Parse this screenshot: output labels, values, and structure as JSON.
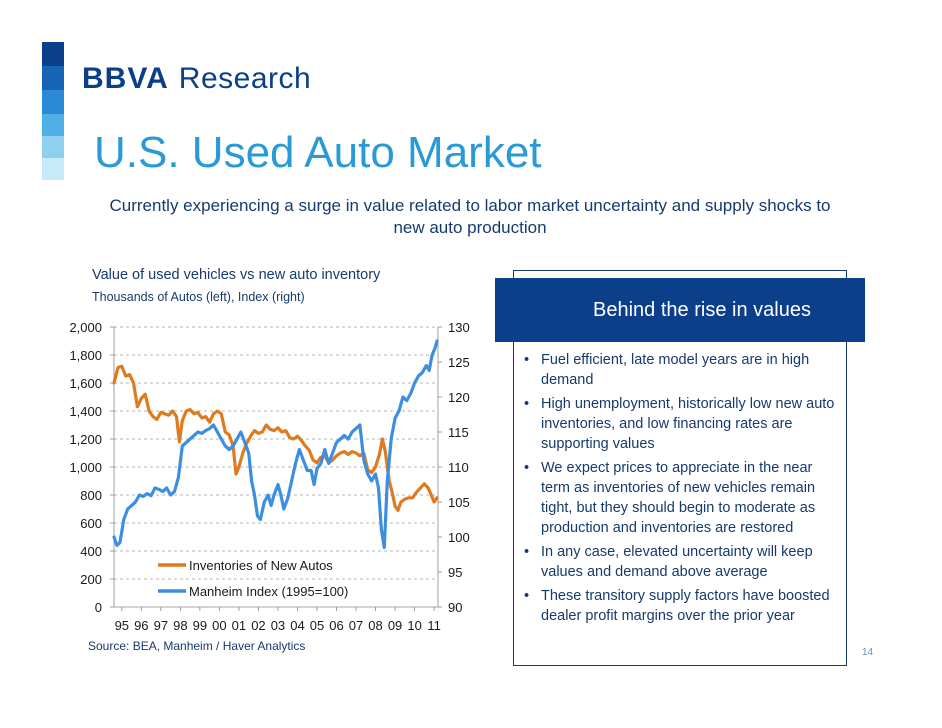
{
  "brand": {
    "name": "BBVA",
    "unit": "Research",
    "band_colors": [
      "#0b3f8a",
      "#1565b7",
      "#2a8ad8",
      "#4fb0e6",
      "#8fd0f0",
      "#c7e9f8"
    ]
  },
  "slide": {
    "title": "U.S. Used Auto Market",
    "subtitle": "Currently experiencing a surge in value related to labor market uncertainty and supply shocks to new auto production",
    "page_number": "14"
  },
  "chart_header": {
    "title": "Value of used vehicles vs new auto inventory",
    "subtitle": "Thousands of Autos (left), Index (right)",
    "source": "Source: BEA, Manheim / Haver Analytics"
  },
  "chart_data": {
    "type": "line",
    "x_tick_labels": [
      "95",
      "96",
      "97",
      "98",
      "99",
      "00",
      "01",
      "02",
      "03",
      "04",
      "05",
      "06",
      "07",
      "08",
      "09",
      "10",
      "11"
    ],
    "x_range": [
      1995.0,
      2011.6
    ],
    "left_axis": {
      "range": [
        0,
        2000
      ],
      "ticks": [
        0,
        200,
        400,
        600,
        800,
        1000,
        1200,
        1400,
        1600,
        1800,
        2000
      ],
      "tick_labels": [
        "0",
        "200",
        "400",
        "600",
        "800",
        "1,000",
        "1,200",
        "1,400",
        "1,600",
        "1,800",
        "2,000"
      ]
    },
    "right_axis": {
      "range": [
        90,
        130
      ],
      "ticks": [
        90,
        95,
        100,
        105,
        110,
        115,
        120,
        125,
        130
      ],
      "tick_labels": [
        "90",
        "95",
        "100",
        "105",
        "110",
        "115",
        "120",
        "125",
        "130"
      ]
    },
    "grid": "horizontal dashed",
    "legend_position": "lower-left",
    "series": [
      {
        "name": "Inventories of New Autos",
        "axis": "left",
        "color": "#e07a1f",
        "points": [
          [
            1995.0,
            1600
          ],
          [
            1995.2,
            1710
          ],
          [
            1995.4,
            1720
          ],
          [
            1995.6,
            1650
          ],
          [
            1995.8,
            1660
          ],
          [
            1996.0,
            1600
          ],
          [
            1996.2,
            1430
          ],
          [
            1996.4,
            1490
          ],
          [
            1996.6,
            1520
          ],
          [
            1996.8,
            1400
          ],
          [
            1997.0,
            1360
          ],
          [
            1997.2,
            1340
          ],
          [
            1997.4,
            1390
          ],
          [
            1997.6,
            1380
          ],
          [
            1997.8,
            1370
          ],
          [
            1998.0,
            1400
          ],
          [
            1998.2,
            1360
          ],
          [
            1998.35,
            1180
          ],
          [
            1998.5,
            1330
          ],
          [
            1998.7,
            1400
          ],
          [
            1998.9,
            1410
          ],
          [
            1999.1,
            1380
          ],
          [
            1999.3,
            1390
          ],
          [
            1999.5,
            1350
          ],
          [
            1999.7,
            1360
          ],
          [
            1999.9,
            1320
          ],
          [
            2000.1,
            1380
          ],
          [
            2000.3,
            1400
          ],
          [
            2000.5,
            1380
          ],
          [
            2000.7,
            1250
          ],
          [
            2000.9,
            1230
          ],
          [
            2001.1,
            1150
          ],
          [
            2001.25,
            950
          ],
          [
            2001.4,
            1000
          ],
          [
            2001.6,
            1100
          ],
          [
            2001.8,
            1170
          ],
          [
            2002.0,
            1220
          ],
          [
            2002.2,
            1260
          ],
          [
            2002.4,
            1240
          ],
          [
            2002.6,
            1250
          ],
          [
            2002.8,
            1300
          ],
          [
            2003.0,
            1270
          ],
          [
            2003.2,
            1260
          ],
          [
            2003.4,
            1280
          ],
          [
            2003.6,
            1250
          ],
          [
            2003.8,
            1260
          ],
          [
            2004.0,
            1210
          ],
          [
            2004.2,
            1200
          ],
          [
            2004.4,
            1220
          ],
          [
            2004.6,
            1190
          ],
          [
            2004.8,
            1150
          ],
          [
            2005.0,
            1120
          ],
          [
            2005.2,
            1050
          ],
          [
            2005.4,
            1030
          ],
          [
            2005.6,
            1070
          ],
          [
            2005.8,
            1080
          ],
          [
            2006.0,
            1030
          ],
          [
            2006.2,
            1050
          ],
          [
            2006.4,
            1080
          ],
          [
            2006.6,
            1100
          ],
          [
            2006.8,
            1110
          ],
          [
            2007.0,
            1090
          ],
          [
            2007.2,
            1110
          ],
          [
            2007.4,
            1100
          ],
          [
            2007.6,
            1080
          ],
          [
            2007.8,
            1100
          ],
          [
            2008.0,
            980
          ],
          [
            2008.2,
            960
          ],
          [
            2008.4,
            1000
          ],
          [
            2008.6,
            1090
          ],
          [
            2008.75,
            1200
          ],
          [
            2008.9,
            1110
          ],
          [
            2009.1,
            900
          ],
          [
            2009.25,
            820
          ],
          [
            2009.4,
            720
          ],
          [
            2009.55,
            690
          ],
          [
            2009.7,
            750
          ],
          [
            2009.9,
            770
          ],
          [
            2010.1,
            780
          ],
          [
            2010.3,
            780
          ],
          [
            2010.5,
            820
          ],
          [
            2010.7,
            850
          ],
          [
            2010.9,
            880
          ],
          [
            2011.1,
            850
          ],
          [
            2011.25,
            800
          ],
          [
            2011.4,
            750
          ],
          [
            2011.55,
            780
          ]
        ]
      },
      {
        "name": "Manheim Index (1995=100)",
        "axis": "right",
        "color": "#3e8ee0",
        "points": [
          [
            1995.0,
            100
          ],
          [
            1995.15,
            98.8
          ],
          [
            1995.3,
            99.2
          ],
          [
            1995.5,
            102.5
          ],
          [
            1995.7,
            104
          ],
          [
            1995.9,
            104.5
          ],
          [
            1996.1,
            105
          ],
          [
            1996.3,
            106
          ],
          [
            1996.5,
            105.8
          ],
          [
            1996.7,
            106.2
          ],
          [
            1996.9,
            105.9
          ],
          [
            1997.1,
            107
          ],
          [
            1997.3,
            106.8
          ],
          [
            1997.5,
            106.5
          ],
          [
            1997.7,
            107
          ],
          [
            1997.9,
            106
          ],
          [
            1998.1,
            106.5
          ],
          [
            1998.3,
            108.5
          ],
          [
            1998.5,
            113
          ],
          [
            1998.7,
            113.5
          ],
          [
            1998.9,
            114
          ],
          [
            1999.1,
            114.5
          ],
          [
            1999.3,
            115
          ],
          [
            1999.5,
            114.8
          ],
          [
            1999.7,
            115.2
          ],
          [
            1999.9,
            115.5
          ],
          [
            2000.1,
            116
          ],
          [
            2000.3,
            115
          ],
          [
            2000.5,
            114
          ],
          [
            2000.7,
            113
          ],
          [
            2000.9,
            112.5
          ],
          [
            2001.1,
            113
          ],
          [
            2001.3,
            114
          ],
          [
            2001.5,
            115
          ],
          [
            2001.7,
            113.5
          ],
          [
            2001.9,
            112
          ],
          [
            2002.05,
            108
          ],
          [
            2002.2,
            106
          ],
          [
            2002.35,
            103
          ],
          [
            2002.5,
            102.5
          ],
          [
            2002.7,
            105
          ],
          [
            2002.9,
            106
          ],
          [
            2003.05,
            104.5
          ],
          [
            2003.2,
            106
          ],
          [
            2003.4,
            107.5
          ],
          [
            2003.55,
            106
          ],
          [
            2003.7,
            104
          ],
          [
            2003.9,
            105.5
          ],
          [
            2004.1,
            108
          ],
          [
            2004.3,
            110.5
          ],
          [
            2004.5,
            112.5
          ],
          [
            2004.7,
            111
          ],
          [
            2004.9,
            109.5
          ],
          [
            2005.1,
            109.5
          ],
          [
            2005.25,
            107.5
          ],
          [
            2005.4,
            109.8
          ],
          [
            2005.6,
            110.5
          ],
          [
            2005.8,
            112.5
          ],
          [
            2006.0,
            110.5
          ],
          [
            2006.2,
            112
          ],
          [
            2006.4,
            113.5
          ],
          [
            2006.6,
            114
          ],
          [
            2006.8,
            114.5
          ],
          [
            2007.0,
            114
          ],
          [
            2007.2,
            115
          ],
          [
            2007.4,
            115.5
          ],
          [
            2007.6,
            116
          ],
          [
            2007.8,
            111
          ],
          [
            2008.0,
            109
          ],
          [
            2008.2,
            108
          ],
          [
            2008.4,
            109
          ],
          [
            2008.55,
            107
          ],
          [
            2008.7,
            101
          ],
          [
            2008.85,
            98.5
          ],
          [
            2009.0,
            108
          ],
          [
            2009.2,
            114
          ],
          [
            2009.4,
            117
          ],
          [
            2009.6,
            118
          ],
          [
            2009.8,
            120
          ],
          [
            2010.0,
            119.5
          ],
          [
            2010.2,
            120.5
          ],
          [
            2010.4,
            122
          ],
          [
            2010.6,
            123
          ],
          [
            2010.8,
            123.5
          ],
          [
            2011.0,
            124.5
          ],
          [
            2011.15,
            123.8
          ],
          [
            2011.3,
            126
          ],
          [
            2011.45,
            127
          ],
          [
            2011.55,
            128
          ]
        ]
      }
    ]
  },
  "panel": {
    "heading": "Behind the rise in values",
    "bullet_symbol": "•",
    "bullets": [
      "Fuel efficient, late model years are in high demand",
      "High unemployment, historically low new auto inventories, and low financing rates are supporting values",
      "We expect prices to appreciate in the near term as inventories of new vehicles remain tight, but they should begin to moderate as production and inventories are restored",
      "In any case, elevated uncertainty will keep values and demand above average",
      "These transitory supply factors have boosted dealer profit margins over the prior year"
    ]
  }
}
